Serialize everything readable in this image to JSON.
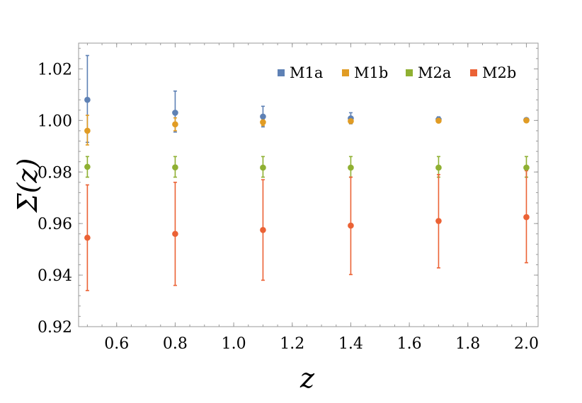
{
  "chart_data": {
    "type": "scatter",
    "xlabel": "z",
    "ylabel": "Σ(z)",
    "xlim": [
      0.47,
      2.04
    ],
    "ylim": [
      0.92,
      1.03
    ],
    "x_ticks": [
      0.6,
      0.8,
      1.0,
      1.2,
      1.4,
      1.6,
      1.8,
      2.0
    ],
    "x_tick_labels": [
      "0.6",
      "0.8",
      "1.0",
      "1.2",
      "1.4",
      "1.6",
      "1.8",
      "2.0"
    ],
    "y_ticks": [
      0.92,
      0.94,
      0.96,
      0.98,
      1.0,
      1.02
    ],
    "y_tick_labels": [
      "0.92",
      "0.94",
      "0.96",
      "0.98",
      "1.00",
      "1.02"
    ],
    "x_minor_step": 0.05,
    "y_minor_step": 0.004,
    "legend_position": "top-right",
    "grid": false,
    "series": [
      {
        "name": "M1a",
        "color": "#5e81b5",
        "x": [
          0.5,
          0.8,
          1.1,
          1.4,
          1.7,
          2.0
        ],
        "y": [
          1.008,
          1.003,
          1.0015,
          1.0008,
          1.0004,
          1.0002
        ],
        "err_low": [
          0.9915,
          0.9955,
          0.9975,
          0.9987,
          0.9994,
          0.9997
        ],
        "err_high": [
          1.0252,
          1.0114,
          1.0055,
          1.003,
          1.0014,
          1.0007
        ]
      },
      {
        "name": "M1b",
        "color": "#e19c24",
        "x": [
          0.5,
          0.8,
          1.1,
          1.4,
          1.7,
          2.0
        ],
        "y": [
          0.996,
          0.9985,
          0.9993,
          0.9997,
          0.9999,
          1.0
        ],
        "err_low": [
          0.9905,
          0.996,
          0.998,
          0.999,
          0.9995,
          0.9998
        ],
        "err_high": [
          1.002,
          1.001,
          1.0005,
          1.0003,
          1.0002,
          1.0001
        ]
      },
      {
        "name": "M2a",
        "color": "#8fb032",
        "x": [
          0.5,
          0.8,
          1.1,
          1.4,
          1.7,
          2.0
        ],
        "y": [
          0.982,
          0.9818,
          0.9817,
          0.9817,
          0.9817,
          0.9817
        ],
        "err_low": [
          0.978,
          0.978,
          0.978,
          0.978,
          0.978,
          0.978
        ],
        "err_high": [
          0.986,
          0.986,
          0.986,
          0.986,
          0.986,
          0.986
        ]
      },
      {
        "name": "M2b",
        "color": "#eb6235",
        "x": [
          0.5,
          0.8,
          1.1,
          1.4,
          1.7,
          2.0
        ],
        "y": [
          0.9545,
          0.956,
          0.9575,
          0.9592,
          0.961,
          0.9625
        ],
        "err_low": [
          0.934,
          0.936,
          0.938,
          0.9402,
          0.9428,
          0.9448
        ],
        "err_high": [
          0.975,
          0.976,
          0.977,
          0.978,
          0.979,
          0.9805
        ]
      }
    ]
  }
}
